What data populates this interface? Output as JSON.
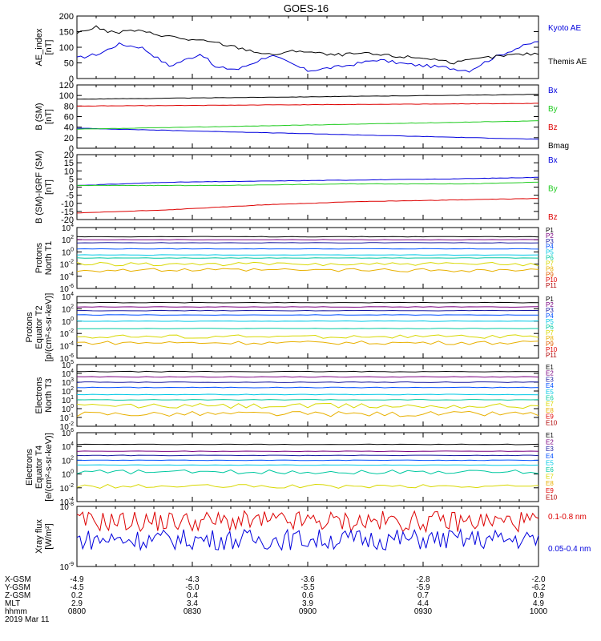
{
  "title": "GOES-16",
  "colors": {
    "black": "#000000",
    "blue": "#0000dd",
    "green": "#22cc22",
    "red": "#dd0000",
    "p_ch": [
      "#000000",
      "#7a0080",
      "#1a1aa0",
      "#0050ff",
      "#00c8e6",
      "#00c8a0",
      "#d8d800",
      "#e8b000",
      "#e06000",
      "#e00000",
      "#b00000"
    ],
    "e_ch": [
      "#000000",
      "#7a0080",
      "#1a1aa0",
      "#0050ff",
      "#00c8e6",
      "#00c8a0",
      "#d8d800",
      "#e8b000",
      "#e00000",
      "#b00000"
    ]
  },
  "chart_data": [
    {
      "type": "line",
      "key": "ae",
      "ylabel": [
        "AE_index",
        "[nT]"
      ],
      "ylim": [
        0,
        200
      ],
      "ticks": [
        0,
        50,
        100,
        150,
        200
      ],
      "series": [
        {
          "name": "Kyoto AE",
          "color": "blue",
          "x": [
            0,
            0.05,
            0.09,
            0.14,
            0.2,
            0.27,
            0.3,
            0.35,
            0.42,
            0.5,
            0.58,
            0.65,
            0.72,
            0.8,
            0.85,
            0.9,
            0.95,
            1
          ],
          "y": [
            65,
            80,
            110,
            100,
            40,
            80,
            35,
            30,
            75,
            25,
            40,
            60,
            45,
            35,
            25,
            65,
            95,
            120
          ]
        },
        {
          "name": "Themis AE",
          "color": "black",
          "x": [
            0,
            0.04,
            0.08,
            0.12,
            0.18,
            0.24,
            0.3,
            0.36,
            0.42,
            0.48,
            0.55,
            0.62,
            0.7,
            0.76,
            0.82,
            0.88,
            0.94,
            1
          ],
          "y": [
            145,
            165,
            145,
            155,
            140,
            125,
            115,
            95,
            75,
            90,
            75,
            80,
            70,
            65,
            50,
            65,
            75,
            80
          ]
        }
      ]
    },
    {
      "type": "line",
      "key": "bsm",
      "ylabel": [
        "B (SM)",
        "[nT]"
      ],
      "ylim": [
        0,
        120
      ],
      "ticks": [
        0,
        20,
        40,
        60,
        80,
        100,
        120
      ],
      "series": [
        {
          "name": "Bx",
          "color": "blue",
          "x": [
            0,
            1
          ],
          "y": [
            38,
            17
          ]
        },
        {
          "name": "By",
          "color": "green",
          "x": [
            0,
            1
          ],
          "y": [
            36,
            52
          ]
        },
        {
          "name": "Bz",
          "color": "red",
          "x": [
            0,
            1
          ],
          "y": [
            80,
            85
          ]
        },
        {
          "name": "Bmag",
          "color": "black",
          "x": [
            0,
            1
          ],
          "y": [
            93,
            102
          ]
        }
      ]
    },
    {
      "type": "line",
      "key": "bigrf",
      "ylabel": [
        "B (SM)-IGRF (SM)",
        "[nT]"
      ],
      "ylim": [
        -20,
        20
      ],
      "ticks": [
        -20,
        -15,
        -10,
        -5,
        0,
        5,
        10,
        15,
        20
      ],
      "series": [
        {
          "name": "Bx",
          "color": "blue",
          "x": [
            0,
            0.2,
            0.5,
            0.8,
            1
          ],
          "y": [
            1,
            3,
            4,
            5,
            6
          ]
        },
        {
          "name": "By",
          "color": "green",
          "x": [
            0,
            0.3,
            0.6,
            0.85,
            1
          ],
          "y": [
            1,
            1,
            2,
            2,
            3
          ]
        },
        {
          "name": "Bz",
          "color": "red",
          "x": [
            0,
            0.2,
            0.4,
            0.6,
            0.8,
            1
          ],
          "y": [
            -16,
            -14,
            -11,
            -9,
            -8,
            -7
          ]
        }
      ]
    },
    {
      "type": "line",
      "log": true,
      "key": "pn",
      "ylabel": [
        "Protons",
        "North T1"
      ],
      "ylim": [
        -6,
        4
      ],
      "ticks": [
        -6,
        -4,
        -2,
        0,
        2,
        4
      ],
      "labels": [
        "P1",
        "P2",
        "P3",
        "P4",
        "P5",
        "P6",
        "P7",
        "P8",
        "P9",
        "P10",
        "P11"
      ],
      "levels": [
        2.5,
        2.0,
        1.5,
        0.5,
        -0.5,
        -1,
        -2,
        -3
      ]
    },
    {
      "type": "line",
      "log": true,
      "key": "pe",
      "ylabel": [
        "Protons",
        "Equator T2",
        "[p/(cm²-s-sr-keV)]"
      ],
      "ylim": [
        -6,
        4
      ],
      "ticks": [
        -6,
        -4,
        -2,
        0,
        2,
        4
      ],
      "labels": [
        "P1",
        "P2",
        "P3",
        "P4",
        "P5",
        "P6",
        "P7",
        "P8",
        "P9",
        "P10",
        "P11"
      ],
      "levels": [
        3,
        2.3,
        1.7,
        1,
        0,
        -1.2,
        -2.5,
        -3.5
      ]
    },
    {
      "type": "line",
      "log": true,
      "key": "en",
      "ylabel": [
        "Electrons",
        "North T3"
      ],
      "ylim": [
        -2,
        5
      ],
      "ticks": [
        -2,
        -1,
        0,
        1,
        2,
        3,
        4,
        5
      ],
      "labels": [
        "E1",
        "E2",
        "E3",
        "E4",
        "E5",
        "E6",
        "E7",
        "E8",
        "E9",
        "E10"
      ],
      "levels": [
        4.2,
        3.6,
        3.0,
        2.4,
        1.6,
        1.0,
        0.3,
        -0.6
      ]
    },
    {
      "type": "line",
      "log": true,
      "key": "ee",
      "ylabel": [
        "Electrons",
        "Equator T4",
        "[e/(cm²-s-sr-keV)]"
      ],
      "ylim": [
        -4,
        6
      ],
      "ticks": [
        -4,
        -2,
        0,
        2,
        4,
        6
      ],
      "labels": [
        "E1",
        "E2",
        "E3",
        "E4",
        "E5",
        "E6",
        "E7",
        "E8",
        "E9",
        "E10"
      ],
      "levels": [
        4.3,
        3.3,
        2.7,
        2,
        1.3,
        0.3,
        -1.8
      ]
    },
    {
      "type": "line",
      "log": true,
      "key": "xray",
      "ylabel": [
        "Xray flux",
        "[W/m²]"
      ],
      "ylim": [
        -9,
        -8
      ],
      "ticks": [
        -9,
        -8
      ],
      "series": [
        {
          "name": "0.1-0.8 nm",
          "color": "red",
          "center": -8.25
        },
        {
          "name": "0.05-0.4 nm",
          "color": "blue",
          "center": -8.55
        }
      ]
    }
  ],
  "xaxis": {
    "ticks": [
      0,
      0.25,
      0.5,
      0.75,
      1
    ],
    "row_labels": [
      "X-GSM",
      "Y-GSM",
      "Z-GSM",
      "MLT",
      "hhmm",
      "2019 Mar 11"
    ],
    "rows": [
      [
        "-4.9",
        "-4.3",
        "-3.6",
        "-2.8",
        "-2.0"
      ],
      [
        "-4.5",
        "-5.0",
        "-5.5",
        "-5.9",
        "-6.2"
      ],
      [
        "0.2",
        "0.4",
        "0.6",
        "0.7",
        "0.9"
      ],
      [
        "2.9",
        "3.4",
        "3.9",
        "4.4",
        "4.9"
      ],
      [
        "0800",
        "0830",
        "0900",
        "0930",
        "1000"
      ]
    ]
  }
}
